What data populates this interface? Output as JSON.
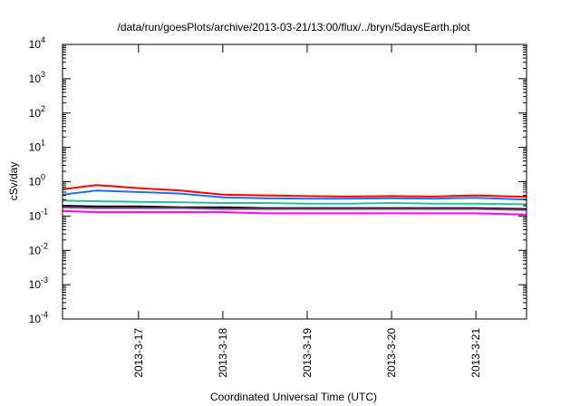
{
  "chart_data": {
    "type": "line",
    "title": "/data/run/goesPlots/archive/2013-03-21/13:00/flux/../bryn/5daysEarth.plot",
    "xlabel": "Coordinated Universal Time (UTC)",
    "ylabel": "cSv/day",
    "y_scale": "log",
    "ylim": [
      0.0001,
      10000
    ],
    "y_ticks": [
      {
        "mantissa": "10",
        "exp": "-4"
      },
      {
        "mantissa": "10",
        "exp": "-3"
      },
      {
        "mantissa": "10",
        "exp": "-2"
      },
      {
        "mantissa": "10",
        "exp": "-1"
      },
      {
        "mantissa": "10",
        "exp": "0"
      },
      {
        "mantissa": "10",
        "exp": "1"
      },
      {
        "mantissa": "10",
        "exp": "2"
      },
      {
        "mantissa": "10",
        "exp": "3"
      },
      {
        "mantissa": "10",
        "exp": "4"
      }
    ],
    "xlim": [
      16.1,
      21.6
    ],
    "x_ticks": [
      {
        "pos": 17,
        "label": "2013-3-17"
      },
      {
        "pos": 18,
        "label": "2013-3-18"
      },
      {
        "pos": 19,
        "label": "2013-3-19"
      },
      {
        "pos": 20,
        "label": "2013-3-20"
      },
      {
        "pos": 21,
        "label": "2013-3-21"
      }
    ],
    "grid": false,
    "series": [
      {
        "color": "#ff0000",
        "x": [
          16.1,
          16.5,
          17.0,
          17.5,
          18.0,
          18.5,
          19.0,
          19.5,
          20.0,
          20.5,
          21.0,
          21.6
        ],
        "values": [
          0.6,
          0.8,
          0.65,
          0.55,
          0.42,
          0.4,
          0.38,
          0.37,
          0.38,
          0.37,
          0.4,
          0.36
        ]
      },
      {
        "color": "#1e6ee6",
        "x": [
          16.1,
          16.5,
          17.0,
          17.5,
          18.0,
          18.5,
          19.0,
          19.5,
          20.0,
          20.5,
          21.0,
          21.6
        ],
        "values": [
          0.42,
          0.55,
          0.5,
          0.45,
          0.35,
          0.33,
          0.32,
          0.32,
          0.33,
          0.32,
          0.34,
          0.3
        ]
      },
      {
        "color": "#20c0a0",
        "x": [
          16.1,
          16.5,
          17.0,
          17.5,
          18.0,
          18.5,
          19.0,
          19.5,
          20.0,
          20.5,
          21.0,
          21.6
        ],
        "values": [
          0.28,
          0.27,
          0.26,
          0.25,
          0.24,
          0.24,
          0.23,
          0.23,
          0.24,
          0.23,
          0.23,
          0.22
        ]
      },
      {
        "color": "#000000",
        "x": [
          16.1,
          16.5,
          17.0,
          17.5,
          18.0,
          18.5,
          19.0,
          19.5,
          20.0,
          20.5,
          21.0,
          21.6
        ],
        "values": [
          0.2,
          0.19,
          0.19,
          0.18,
          0.18,
          0.17,
          0.17,
          0.17,
          0.17,
          0.17,
          0.17,
          0.16
        ]
      },
      {
        "color": "#8a3a8a",
        "x": [
          16.1,
          16.5,
          17.0,
          17.5,
          18.0,
          18.5,
          19.0,
          19.5,
          20.0,
          20.5,
          21.0,
          21.6
        ],
        "values": [
          0.18,
          0.17,
          0.17,
          0.17,
          0.16,
          0.16,
          0.16,
          0.16,
          0.16,
          0.16,
          0.16,
          0.15
        ]
      },
      {
        "color": "#ff00ff",
        "x": [
          16.1,
          16.5,
          17.0,
          17.5,
          18.0,
          18.5,
          19.0,
          19.5,
          20.0,
          20.5,
          21.0,
          21.6
        ],
        "values": [
          0.14,
          0.13,
          0.13,
          0.13,
          0.13,
          0.12,
          0.12,
          0.12,
          0.12,
          0.12,
          0.12,
          0.11
        ]
      }
    ]
  }
}
